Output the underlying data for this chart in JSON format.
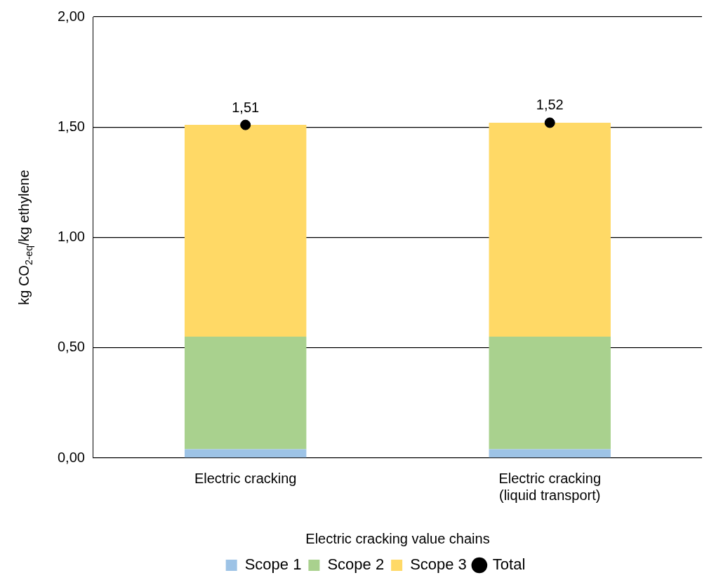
{
  "chart_data": {
    "type": "bar",
    "stacked": true,
    "xlabel": "Electric cracking value chains",
    "ylabel": "kg CO$_{2-eq}$/kg ethylene",
    "categories": [
      "Electric cracking",
      "Electric cracking\n(liquid transport)"
    ],
    "ylim": [
      0,
      2
    ],
    "yticks": [
      {
        "value": 0,
        "label": "0,00"
      },
      {
        "value": 0.5,
        "label": "0,50"
      },
      {
        "value": 1,
        "label": "1,00"
      },
      {
        "value": 1.5,
        "label": "1,50"
      },
      {
        "value": 2,
        "label": "2,00"
      }
    ],
    "grid": "y",
    "legend": "bottom",
    "series": [
      {
        "name": "Scope 1",
        "color": "#9dc3e6",
        "values": [
          0.04,
          0.04
        ]
      },
      {
        "name": "Scope 2",
        "color": "#a9d18e",
        "values": [
          0.51,
          0.51
        ]
      },
      {
        "name": "Scope 3",
        "color": "#ffd966",
        "values": [
          0.96,
          0.97
        ]
      },
      {
        "name": "Total",
        "type": "scatter",
        "color": "#000000",
        "marker": "circle",
        "x": [
          "Electric cracking",
          "Electric cracking\n(liquid transport)"
        ],
        "values": [
          1.51,
          1.52
        ],
        "value_labels": [
          "1,51",
          "1,52"
        ]
      }
    ]
  }
}
